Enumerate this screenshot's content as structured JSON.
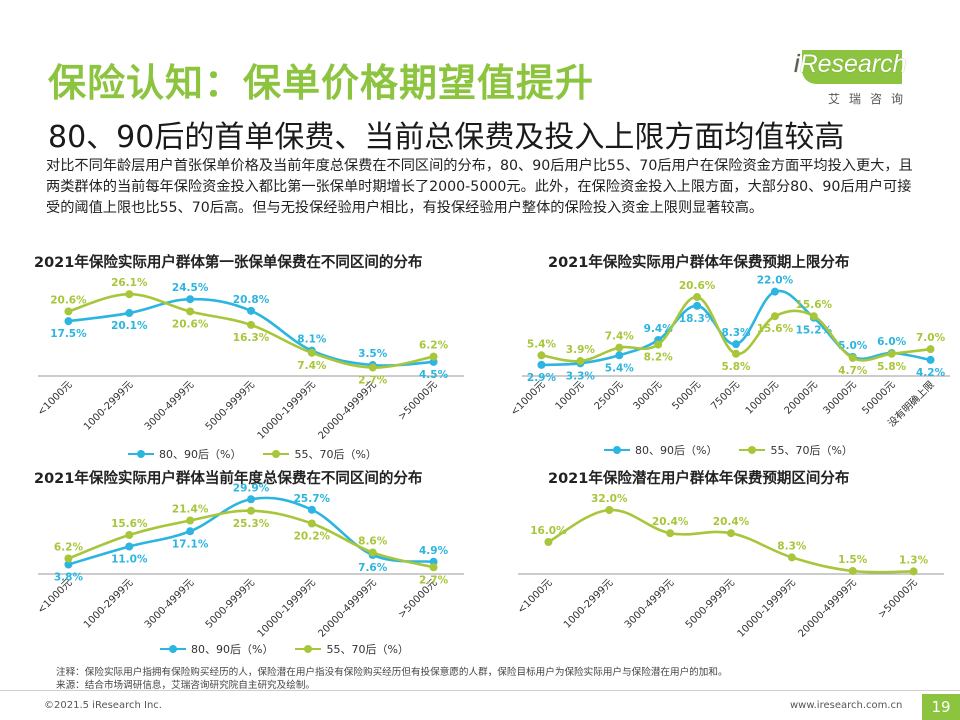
{
  "page": {
    "title": "保险认知：保单价格期望值提升",
    "subtitle": "80、90后的首单保费、当前总保费及投入上限方面均值较高",
    "intro": "对比不同年龄层用户首张保单价格及当前年度总保费在不同区间的分布，80、90后用户比55、70后用户在保险资金方面平均投入更大，且两类群体的当前每年保险资金投入都比第一张保单时期增长了2000-5000元。此外，在保险资金投入上限方面，大部分80、90后用户可接受的阈值上限也比55、70后高。但与无投保经验用户相比，有投保经验用户整体的保险投入资金上限则显著较高。",
    "logo": {
      "brand_i": "i",
      "brand_rest": "Research",
      "cn": "艾瑞咨询"
    },
    "notes": [
      "注释：保险实际用户指拥有保险购买经历的人，保险潜在用户指没有保险购买经历但有投保意愿的人群，保险目标用户为保险实际用户与保险潜在用户的加和。",
      "来源：结合市场调研信息，艾瑞咨询研究院自主研究及绘制。"
    ],
    "footer_left": "©2021.5 iResearch Inc.",
    "footer_right": "www.iresearch.com.cn",
    "page_number": "19"
  },
  "colors": {
    "blue": "#2cb5e0",
    "green": "#a7c63a",
    "title_green": "#8cc43f",
    "axis": "#999999"
  },
  "chart_data": [
    {
      "type": "line",
      "title": "2021年保险实际用户群体第一张保单保费在不同区间的分布",
      "categories": [
        "<1000元",
        "1000-2999元",
        "3000-4999元",
        "5000-9999元",
        "10000-19999元",
        "20000-49999元",
        ">50000元"
      ],
      "ylim": [
        0,
        30
      ],
      "series": [
        {
          "name": "80、90后（%）",
          "color": "blue",
          "values": [
            17.5,
            20.1,
            24.5,
            20.8,
            8.1,
            3.5,
            4.5
          ],
          "labels": [
            "17.5%",
            "20.1%",
            "24.5%",
            "20.8%",
            "8.1%",
            "3.5%",
            "4.5%"
          ]
        },
        {
          "name": "55、70后（%）",
          "color": "green",
          "values": [
            20.6,
            26.1,
            20.6,
            16.3,
            7.4,
            2.7,
            6.2
          ],
          "labels": [
            "20.6%",
            "26.1%",
            "20.6%",
            "16.3%",
            "7.4%",
            "2.7%",
            "6.2%"
          ]
        }
      ]
    },
    {
      "type": "line",
      "title": "2021年保险实际用户群体年保费预期上限分布",
      "categories": [
        "<1000元",
        "1000元",
        "2500元",
        "3000元",
        "5000元",
        "7500元",
        "10000元",
        "20000元",
        "30000元",
        "50000元",
        "没有明确上限"
      ],
      "ylim": [
        0,
        24
      ],
      "series": [
        {
          "name": "80、90后（%）",
          "color": "blue",
          "values": [
            2.9,
            3.3,
            5.4,
            9.4,
            18.3,
            8.3,
            22.0,
            15.2,
            5.0,
            6.0,
            4.2
          ],
          "labels": [
            "2.9%",
            "3.3%",
            "5.4%",
            "9.4%",
            "18.3%",
            "8.3%",
            "22.0%",
            "15.2%",
            "5.0%",
            "6.0%",
            "4.2%"
          ]
        },
        {
          "name": "55、70后（%）",
          "color": "green",
          "values": [
            5.4,
            3.9,
            7.4,
            8.2,
            20.6,
            5.8,
            15.6,
            15.6,
            4.7,
            5.8,
            7.0
          ],
          "labels": [
            "5.4%",
            "3.9%",
            "7.4%",
            "8.2%",
            "20.6%",
            "5.8%",
            "15.6%",
            "15.6%",
            "4.7%",
            "5.8%",
            "7.0%"
          ]
        }
      ]
    },
    {
      "type": "line",
      "title": "2021年保险实际用户群体当前年度总保费在不同区间的分布",
      "categories": [
        "<1000元",
        "1000-2999元",
        "3000-4999元",
        "5000-9999元",
        "10000-19999元",
        "20000-49999元",
        ">50000元"
      ],
      "ylim": [
        0,
        32
      ],
      "series": [
        {
          "name": "80、90后（%）",
          "color": "blue",
          "values": [
            3.8,
            11.0,
            17.1,
            29.9,
            25.7,
            7.6,
            4.9
          ],
          "labels": [
            "3.8%",
            "11.0%",
            "17.1%",
            "29.9%",
            "25.7%",
            "7.6%",
            "4.9%"
          ]
        },
        {
          "name": "55、70后（%）",
          "color": "green",
          "values": [
            6.2,
            15.6,
            21.4,
            25.3,
            20.2,
            8.6,
            2.7
          ],
          "labels": [
            "6.2%",
            "15.6%",
            "21.4%",
            "25.3%",
            "20.2%",
            "8.6%",
            "2.7%"
          ]
        }
      ]
    },
    {
      "type": "line",
      "title": "2021年保险潜在用户群体年保费预期区间分布",
      "categories": [
        "<1000元",
        "1000-2999元",
        "3000-4999元",
        "5000-9999元",
        "10000-19999元",
        "20000-49999元",
        ">50000元"
      ],
      "ylim": [
        0,
        34
      ],
      "series": [
        {
          "name": "",
          "color": "green",
          "values": [
            16.0,
            32.0,
            20.4,
            20.4,
            8.3,
            1.5,
            1.3
          ],
          "labels": [
            "16.0%",
            "32.0%",
            "20.4%",
            "20.4%",
            "8.3%",
            "1.5%",
            "1.3%"
          ]
        }
      ]
    }
  ]
}
